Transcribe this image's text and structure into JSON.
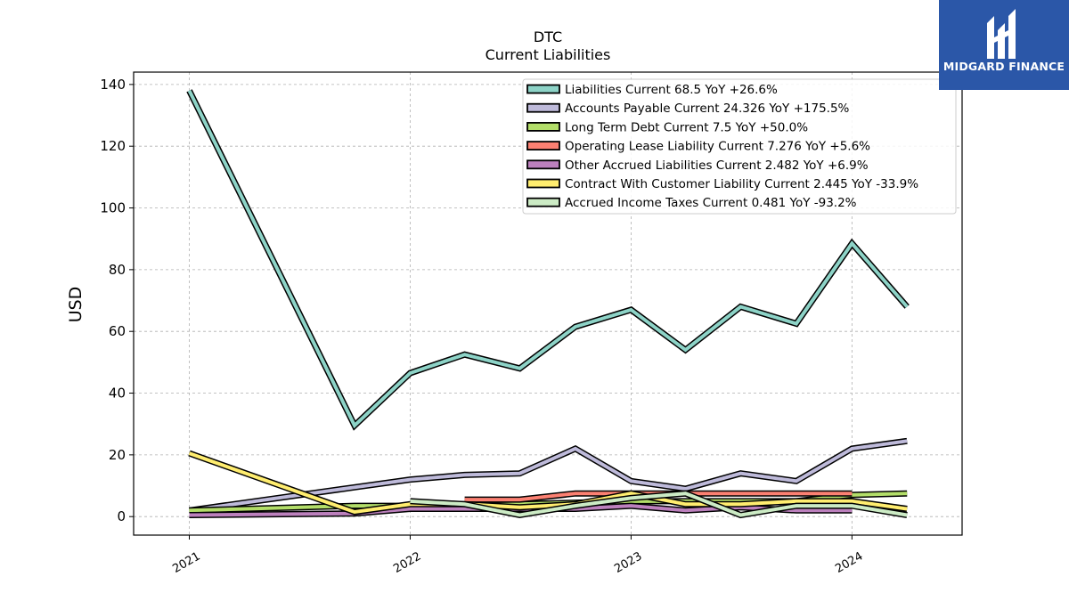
{
  "chart_data": {
    "type": "line",
    "title": "DTC",
    "subtitle": "Current  Liabilities",
    "ylabel": "USD",
    "xlabel": "",
    "ylim": [
      -6,
      144
    ],
    "xlim": [
      "2020-10-01",
      "2024-07-01"
    ],
    "yticks": [
      0,
      20,
      40,
      60,
      80,
      100,
      120,
      140
    ],
    "xticks": [
      {
        "label": "2021",
        "date": "2021-01-01"
      },
      {
        "label": "2022",
        "date": "2022-01-01"
      },
      {
        "label": "2023",
        "date": "2023-01-01"
      },
      {
        "label": "2024",
        "date": "2024-01-01"
      }
    ],
    "grid": true,
    "legend_position": "top-right",
    "series": [
      {
        "name": "Liabilities Current  68.5 YoY +26.6%",
        "color": "#8dd3c7",
        "points": [
          [
            "2021-01-01",
            138
          ],
          [
            "2021-10-01",
            29.5
          ],
          [
            "2022-01-01",
            46.5
          ],
          [
            "2022-04-01",
            52.5
          ],
          [
            "2022-07-01",
            48
          ],
          [
            "2022-10-01",
            61.5
          ],
          [
            "2023-01-01",
            67
          ],
          [
            "2023-04-01",
            54
          ],
          [
            "2023-07-01",
            68
          ],
          [
            "2023-10-01",
            62.5
          ],
          [
            "2024-01-01",
            88.5
          ],
          [
            "2024-04-01",
            68
          ]
        ]
      },
      {
        "name": "Accounts Payable Current  24.326 YoY +175.5%",
        "color": "#bebada",
        "points": [
          [
            "2021-01-01",
            2
          ],
          [
            "2021-10-01",
            9.5
          ],
          [
            "2022-01-01",
            12
          ],
          [
            "2022-04-01",
            13.5
          ],
          [
            "2022-07-01",
            14
          ],
          [
            "2022-10-01",
            22
          ],
          [
            "2023-01-01",
            11.5
          ],
          [
            "2023-04-01",
            9
          ],
          [
            "2023-07-01",
            14
          ],
          [
            "2023-10-01",
            11.5
          ],
          [
            "2024-01-01",
            22
          ],
          [
            "2024-04-01",
            24.5
          ]
        ]
      },
      {
        "name": "Long Term Debt Current  7.5 YoY +50.0%",
        "color": "#b3de69",
        "points": [
          [
            "2021-01-01",
            2
          ],
          [
            "2021-10-01",
            3.5
          ],
          [
            "2022-01-01",
            3.5
          ],
          [
            "2022-04-01",
            3.5
          ],
          [
            "2022-07-01",
            4
          ],
          [
            "2022-10-01",
            4.5
          ],
          [
            "2023-01-01",
            5
          ],
          [
            "2023-04-01",
            5
          ],
          [
            "2023-07-01",
            5
          ],
          [
            "2023-10-01",
            5
          ],
          [
            "2024-01-01",
            7
          ],
          [
            "2024-04-01",
            7.5
          ]
        ]
      },
      {
        "name": "Operating Lease Liability Current  7.276 YoY +5.6%",
        "color": "#fb8072",
        "points": [
          [
            "2022-04-01",
            5.5
          ],
          [
            "2022-07-01",
            5.5
          ],
          [
            "2022-10-01",
            7.5
          ],
          [
            "2023-01-01",
            7.5
          ],
          [
            "2023-04-01",
            7.5
          ],
          [
            "2023-07-01",
            7.5
          ],
          [
            "2023-10-01",
            7.5
          ],
          [
            "2024-01-01",
            7.5
          ]
        ]
      },
      {
        "name": "Other Accrued Liabilities Current  2.482 YoY +6.9%",
        "color": "#bc80bd",
        "points": [
          [
            "2021-01-01",
            0.5
          ],
          [
            "2021-10-01",
            1
          ],
          [
            "2022-01-01",
            2.5
          ],
          [
            "2022-04-01",
            2.5
          ],
          [
            "2022-07-01",
            2.5
          ],
          [
            "2022-10-01",
            2.5
          ],
          [
            "2023-01-01",
            3.5
          ],
          [
            "2023-04-01",
            2
          ],
          [
            "2023-07-01",
            3
          ],
          [
            "2023-10-01",
            2
          ],
          [
            "2024-01-01",
            2
          ]
        ]
      },
      {
        "name": "Contract With Customer Liability Current  2.445 YoY -33.9%",
        "color": "#ffed6f",
        "points": [
          [
            "2021-01-01",
            20.5
          ],
          [
            "2021-10-01",
            1.5
          ],
          [
            "2022-01-01",
            4
          ],
          [
            "2022-04-01",
            4
          ],
          [
            "2022-07-01",
            3
          ],
          [
            "2022-10-01",
            4
          ],
          [
            "2023-01-01",
            7.5
          ],
          [
            "2023-04-01",
            4
          ],
          [
            "2023-07-01",
            4
          ],
          [
            "2023-10-01",
            5
          ],
          [
            "2024-01-01",
            5
          ],
          [
            "2024-04-01",
            2.5
          ]
        ]
      },
      {
        "name": "Accrued Income Taxes Current  0.481 YoY -93.2%",
        "color": "#ccebc5",
        "points": [
          [
            "2022-01-01",
            5
          ],
          [
            "2022-04-01",
            4
          ],
          [
            "2022-07-01",
            0.5
          ],
          [
            "2022-10-01",
            3.5
          ],
          [
            "2023-01-01",
            6
          ],
          [
            "2023-04-01",
            7.5
          ],
          [
            "2023-07-01",
            0.5
          ],
          [
            "2023-10-01",
            3.5
          ],
          [
            "2024-01-01",
            3.5
          ],
          [
            "2024-04-01",
            0.5
          ]
        ]
      }
    ]
  },
  "logo": {
    "text": "MIDGARD FINANCE",
    "background": "#2b57a8",
    "icon": "midgard-logo-icon"
  }
}
